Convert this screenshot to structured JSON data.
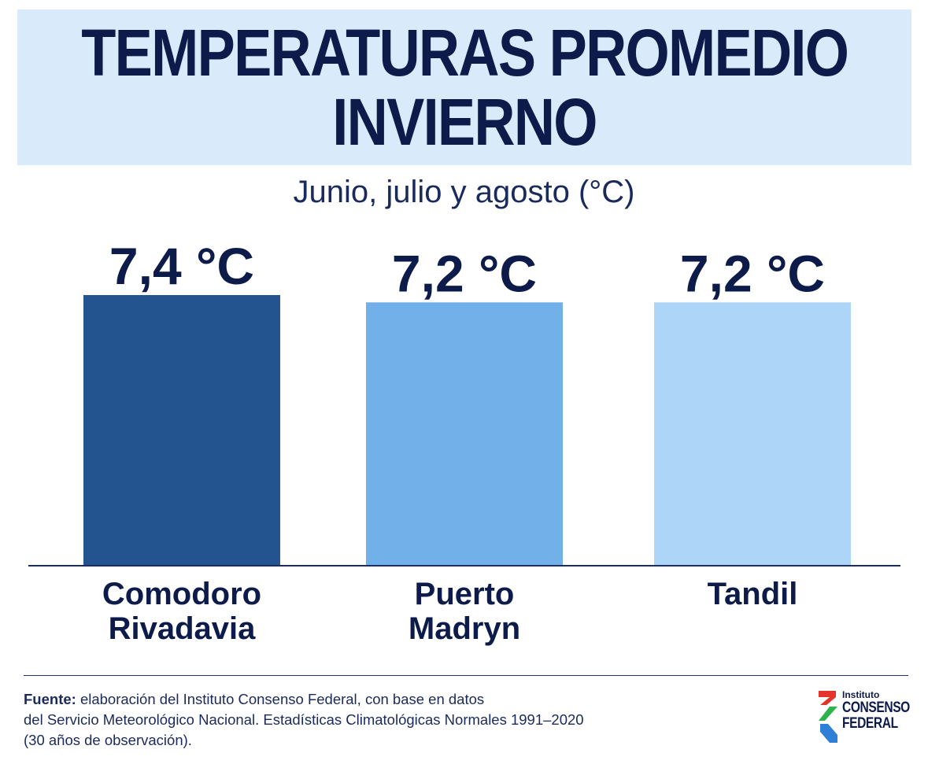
{
  "chart_data": {
    "type": "bar",
    "title_lines": [
      "TEMPERATURAS PROMEDIO",
      "INVIERNO"
    ],
    "subtitle": "Junio, julio y agosto (°C)",
    "categories": [
      [
        "Comodoro",
        "Rivadavia"
      ],
      [
        "Puerto",
        "Madryn"
      ],
      [
        "Tandil"
      ]
    ],
    "values": [
      7.4,
      7.2,
      7.2
    ],
    "data_labels": [
      "7,4 °C",
      "7,2 °C",
      "7,2 °C"
    ],
    "colors": [
      "#23548f",
      "#72b0ea",
      "#acd5f8"
    ],
    "xlabel": "",
    "ylabel": "",
    "grid": false
  },
  "footer": {
    "source_label": "Fuente:",
    "source_line1": " elaboración del Instituto Consenso Federal, con base en datos",
    "source_line2": "del Servicio Meteorológico Nacional. Estadísticas Climatológicas Normales 1991–2020",
    "source_line3": "(30 años de observación)."
  },
  "logo": {
    "line1": "Instituto",
    "line2": "CONSENSO",
    "line3": "FEDERAL",
    "colors": [
      "#e63329",
      "#2eb34a",
      "#2f7fd8"
    ]
  },
  "colors": {
    "title_bg": "#d9ebfa",
    "text_dark": "#0d1b4a"
  }
}
